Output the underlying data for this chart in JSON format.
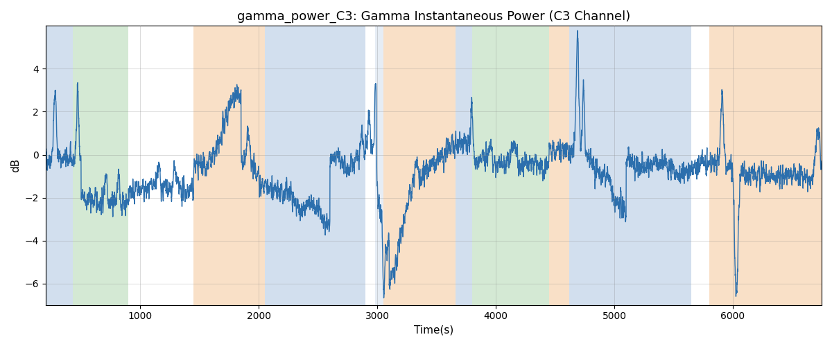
{
  "title": "gamma_power_C3: Gamma Instantaneous Power (C3 Channel)",
  "xlabel": "Time(s)",
  "ylabel": "dB",
  "xlim": [
    200,
    6750
  ],
  "ylim": [
    -7,
    6
  ],
  "yticks": [
    -6,
    -4,
    -2,
    0,
    2,
    4
  ],
  "figsize": [
    12,
    5
  ],
  "dpi": 100,
  "line_color": "#2c6fad",
  "line_width": 1.0,
  "grid_color": "gray",
  "grid_alpha": 0.4,
  "grid_linewidth": 0.5,
  "title_fontsize": 13,
  "label_fontsize": 11,
  "bands": [
    {
      "xmin": 200,
      "xmax": 430,
      "color": "#aec6e0",
      "alpha": 0.55
    },
    {
      "xmin": 430,
      "xmax": 900,
      "color": "#b2d8b2",
      "alpha": 0.55
    },
    {
      "xmin": 1450,
      "xmax": 2050,
      "color": "#f5c89a",
      "alpha": 0.55
    },
    {
      "xmin": 2050,
      "xmax": 2900,
      "color": "#aec6e0",
      "alpha": 0.55
    },
    {
      "xmin": 2980,
      "xmax": 3050,
      "color": "#aec6e0",
      "alpha": 0.3
    },
    {
      "xmin": 3050,
      "xmax": 3660,
      "color": "#f5c89a",
      "alpha": 0.55
    },
    {
      "xmin": 3660,
      "xmax": 3800,
      "color": "#aec6e0",
      "alpha": 0.55
    },
    {
      "xmin": 3800,
      "xmax": 4450,
      "color": "#b2d8b2",
      "alpha": 0.55
    },
    {
      "xmin": 4450,
      "xmax": 4620,
      "color": "#f5c89a",
      "alpha": 0.55
    },
    {
      "xmin": 4620,
      "xmax": 5650,
      "color": "#aec6e0",
      "alpha": 0.55
    },
    {
      "xmin": 5800,
      "xmax": 6750,
      "color": "#f5c89a",
      "alpha": 0.55
    }
  ],
  "seed": 42,
  "n_points": 6550
}
